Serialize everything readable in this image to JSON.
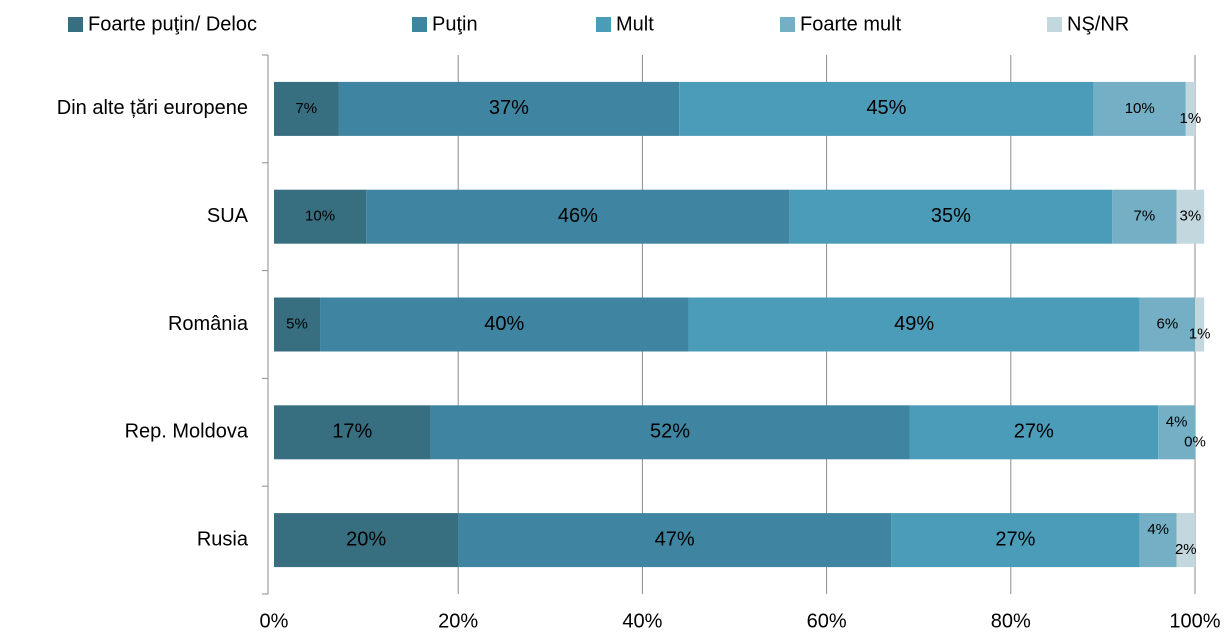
{
  "chart_data": {
    "type": "stacked_barh",
    "categories": [
      "Din alte țări europene",
      "SUA",
      "România",
      "Rep. Moldova",
      "Rusia"
    ],
    "series": [
      {
        "name": "Foarte puţin/ Deloc",
        "color": "#376e80",
        "values": [
          7,
          10,
          5,
          17,
          20
        ],
        "value_labels": [
          "7%",
          "10%",
          "5%",
          "17%",
          "20%"
        ]
      },
      {
        "name": "Puţin",
        "color": "#3f85a1",
        "values": [
          37,
          46,
          40,
          52,
          47
        ],
        "value_labels": [
          "37%",
          "46%",
          "40%",
          "52%",
          "47%"
        ]
      },
      {
        "name": "Mult",
        "color": "#4b9cb9",
        "values": [
          45,
          35,
          49,
          27,
          27
        ],
        "value_labels": [
          "45%",
          "35%",
          "49%",
          "27%",
          "27%"
        ]
      },
      {
        "name": "Foarte mult",
        "color": "#74afc5",
        "values": [
          10,
          7,
          6,
          4,
          4
        ],
        "value_labels": [
          "10%",
          "7%",
          "6%",
          "4%",
          "4%"
        ]
      },
      {
        "name": "NŞ/NR",
        "color": "#c3d7df",
        "values": [
          1,
          3,
          1,
          0,
          2
        ],
        "value_labels": [
          "1%",
          "3%",
          "1%",
          "0%",
          "2%"
        ]
      }
    ],
    "xlim": [
      0,
      100
    ],
    "xticks": [
      {
        "value": 0,
        "label": "0%"
      },
      {
        "value": 20,
        "label": "20%"
      },
      {
        "value": 40,
        "label": "40%"
      },
      {
        "value": 60,
        "label": "60%"
      },
      {
        "value": 80,
        "label": "80%"
      },
      {
        "value": 100,
        "label": "100%"
      }
    ],
    "grid": true,
    "legend": "top"
  }
}
